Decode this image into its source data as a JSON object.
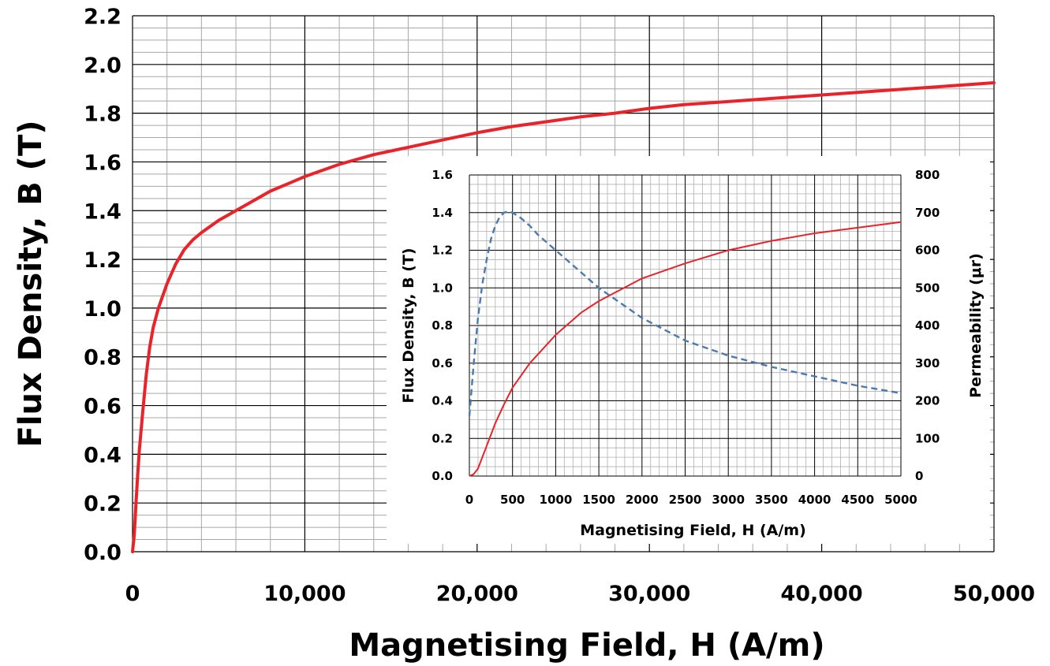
{
  "chart_data": [
    {
      "type": "line",
      "role": "main",
      "xlabel": "Magnetising Field, H (A/m)",
      "ylabel": "Flux Density, B (T)",
      "xlim": [
        0,
        50000
      ],
      "ylim": [
        0,
        2.2
      ],
      "x_ticks": [
        0,
        10000,
        20000,
        30000,
        40000,
        50000
      ],
      "x_tick_labels": [
        "0",
        "10,000",
        "20,000",
        "30,000",
        "40,000",
        "50,000"
      ],
      "y_ticks": [
        0,
        0.2,
        0.4,
        0.6,
        0.8,
        1.0,
        1.2,
        1.4,
        1.6,
        1.8,
        2.0,
        2.2
      ],
      "y_tick_labels": [
        "0.0",
        "0.2",
        "0.4",
        "0.6",
        "0.8",
        "1.0",
        "1.2",
        "1.4",
        "1.6",
        "1.8",
        "2.0",
        "2.2"
      ],
      "grid": true,
      "series": [
        {
          "color": "#e8232a",
          "style": "solid",
          "x": [
            0,
            100,
            200,
            300,
            400,
            500,
            600,
            800,
            1000,
            1200,
            1500,
            2000,
            2500,
            3000,
            3500,
            4000,
            5000,
            6000,
            7000,
            8000,
            9000,
            10000,
            12000,
            14000,
            16000,
            18000,
            20000,
            22000,
            24000,
            26000,
            28000,
            30000,
            32000,
            34000,
            36000,
            38000,
            40000,
            42000,
            44000,
            46000,
            48000,
            50000
          ],
          "y": [
            0,
            0.07,
            0.2,
            0.32,
            0.42,
            0.5,
            0.58,
            0.73,
            0.84,
            0.92,
            1.0,
            1.1,
            1.18,
            1.24,
            1.28,
            1.31,
            1.36,
            1.4,
            1.44,
            1.48,
            1.51,
            1.54,
            1.59,
            1.63,
            1.66,
            1.69,
            1.72,
            1.745,
            1.765,
            1.785,
            1.8,
            1.82,
            1.835,
            1.845,
            1.855,
            1.865,
            1.875,
            1.885,
            1.895,
            1.905,
            1.915,
            1.925
          ]
        }
      ]
    },
    {
      "type": "line",
      "role": "inset",
      "xlabel": "Magnetising Field, H (A/m)",
      "ylabel": "Flux Density, B (T)",
      "ylabel_right": "Permeability (μr)",
      "xlim": [
        0,
        5000
      ],
      "ylim": [
        0,
        1.6
      ],
      "ylim_right": [
        0,
        800
      ],
      "x_ticks": [
        0,
        500,
        1000,
        1500,
        2000,
        2500,
        3000,
        3500,
        4000,
        4500,
        5000
      ],
      "x_tick_labels": [
        "0",
        "500",
        "1000",
        "1500",
        "2000",
        "2500",
        "3000",
        "3500",
        "4000",
        "4500",
        "5000"
      ],
      "y_ticks": [
        0,
        0.2,
        0.4,
        0.6,
        0.8,
        1.0,
        1.2,
        1.4,
        1.6
      ],
      "y_tick_labels": [
        "0.0",
        "0.2",
        "0.4",
        "0.6",
        "0.8",
        "1.0",
        "1.2",
        "1.4",
        "1.6"
      ],
      "y_ticks_right": [
        0,
        100,
        200,
        300,
        400,
        500,
        600,
        700,
        800
      ],
      "y_tick_labels_right": [
        "0",
        "100",
        "200",
        "300",
        "400",
        "500",
        "600",
        "700",
        "800"
      ],
      "grid": true,
      "series": [
        {
          "color": "#e8232a",
          "style": "solid",
          "axis": "left",
          "x": [
            0,
            50,
            100,
            200,
            300,
            400,
            500,
            700,
            1000,
            1300,
            1500,
            2000,
            2500,
            3000,
            3500,
            4000,
            4500,
            5000
          ],
          "y": [
            0,
            0.01,
            0.04,
            0.16,
            0.28,
            0.38,
            0.47,
            0.6,
            0.75,
            0.87,
            0.93,
            1.05,
            1.13,
            1.2,
            1.25,
            1.29,
            1.32,
            1.35
          ]
        },
        {
          "color": "#4a7ab0",
          "style": "dashed",
          "axis": "right",
          "x": [
            0,
            50,
            100,
            150,
            200,
            250,
            300,
            350,
            400,
            450,
            500,
            600,
            700,
            800,
            1000,
            1200,
            1500,
            2000,
            2500,
            3000,
            3500,
            4000,
            4500,
            5000
          ],
          "y": [
            160,
            300,
            420,
            510,
            575,
            630,
            665,
            688,
            700,
            703,
            700,
            685,
            665,
            640,
            600,
            560,
            500,
            420,
            360,
            320,
            290,
            265,
            240,
            220
          ]
        }
      ]
    }
  ]
}
